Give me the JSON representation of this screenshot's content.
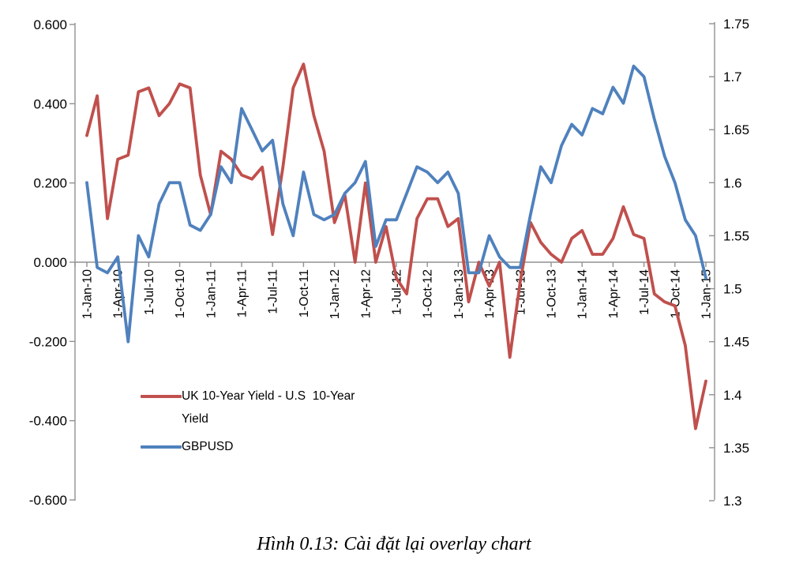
{
  "caption": "Hình 0.13: Cài đặt lại overlay chart",
  "legend": {
    "items": [
      {
        "label": "UK 10-Year Yield - U.S  10-Year Yield",
        "color": "#C0504D"
      },
      {
        "label": "GBPUSD",
        "color": "#4F81BD"
      }
    ]
  },
  "chart_data": {
    "type": "line",
    "title": "",
    "x_interval": "monthly",
    "x_range": [
      "1-Jan-10",
      "1-Jan-15"
    ],
    "x_tick_labels": [
      "1-Jan-10",
      "1-Apr-10",
      "1-Jul-10",
      "1-Oct-10",
      "1-Jan-11",
      "1-Apr-11",
      "1-Jul-11",
      "1-Oct-11",
      "1-Jan-12",
      "1-Apr-12",
      "1-Jul-12",
      "1-Oct-12",
      "1-Jan-13",
      "1-Apr-13",
      "1-Jul-13",
      "1-Oct-13",
      "1-Jan-14",
      "1-Apr-14",
      "1-Jul-14",
      "1-Oct-14",
      "1-Jan-15"
    ],
    "left_axis": {
      "tick_labels": [
        "0.600",
        "0.400",
        "0.200",
        "0.000",
        "-0.200",
        "-0.400",
        "-0.600"
      ],
      "tick_values": [
        0.6,
        0.4,
        0.2,
        0.0,
        -0.2,
        -0.4,
        -0.6
      ],
      "range": [
        -0.6,
        0.6
      ]
    },
    "right_axis": {
      "tick_labels": [
        "1.75",
        "1.7",
        "1.65",
        "1.6",
        "1.55",
        "1.5",
        "1.45",
        "1.4",
        "1.35",
        "1.3"
      ],
      "tick_values": [
        1.75,
        1.7,
        1.65,
        1.6,
        1.55,
        1.5,
        1.45,
        1.4,
        1.35,
        1.3
      ],
      "range": [
        1.3,
        1.75
      ]
    },
    "grid": false,
    "legend_position": "inside-bottom-left",
    "series": [
      {
        "name": "UK 10-Year Yield - U.S 10-Year Yield",
        "axis": "left",
        "color": "#C0504D",
        "values": [
          0.32,
          0.42,
          0.11,
          0.26,
          0.27,
          0.43,
          0.44,
          0.37,
          0.4,
          0.45,
          0.44,
          0.22,
          0.12,
          0.28,
          0.26,
          0.22,
          0.21,
          0.24,
          0.07,
          0.24,
          0.44,
          0.5,
          0.37,
          0.28,
          0.1,
          0.17,
          0.0,
          0.2,
          0.0,
          0.09,
          -0.04,
          -0.08,
          0.11,
          0.16,
          0.16,
          0.09,
          0.11,
          -0.1,
          0.0,
          -0.06,
          0.0,
          -0.24,
          -0.05,
          0.1,
          0.05,
          0.02,
          0.0,
          0.06,
          0.08,
          0.02,
          0.02,
          0.06,
          0.14,
          0.07,
          0.06,
          -0.08,
          -0.1,
          -0.11,
          -0.21,
          -0.42,
          -0.3
        ]
      },
      {
        "name": "GBPUSD",
        "axis": "right",
        "color": "#4F81BD",
        "values": [
          1.6,
          1.52,
          1.515,
          1.53,
          1.45,
          1.55,
          1.53,
          1.58,
          1.6,
          1.6,
          1.56,
          1.555,
          1.57,
          1.615,
          1.6,
          1.67,
          1.65,
          1.63,
          1.64,
          1.58,
          1.55,
          1.61,
          1.57,
          1.565,
          1.57,
          1.59,
          1.6,
          1.62,
          1.54,
          1.565,
          1.565,
          1.59,
          1.615,
          1.61,
          1.6,
          1.61,
          1.59,
          1.515,
          1.515,
          1.55,
          1.53,
          1.52,
          1.52,
          1.57,
          1.615,
          1.6,
          1.635,
          1.655,
          1.645,
          1.67,
          1.665,
          1.69,
          1.675,
          1.71,
          1.7,
          1.66,
          1.625,
          1.6,
          1.565,
          1.55,
          1.51
        ]
      }
    ]
  }
}
